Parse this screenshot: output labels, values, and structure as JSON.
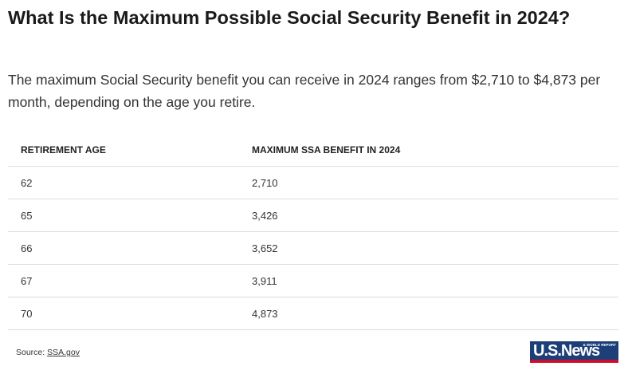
{
  "header": {
    "title": "What Is the Maximum Possible Social Security Benefit in 2024?",
    "intro": "The maximum Social Security benefit you can receive in 2024 ranges from $2,710 to $4,873 per month, depending on the age you retire."
  },
  "table": {
    "columns": [
      "RETIREMENT AGE",
      "MAXIMUM SSA BENEFIT IN 2024"
    ],
    "rows": [
      [
        "62",
        "2,710"
      ],
      [
        "65",
        "3,426"
      ],
      [
        "66",
        "3,652"
      ],
      [
        "67",
        "3,911"
      ],
      [
        "70",
        "4,873"
      ]
    ]
  },
  "footer": {
    "source_label": "Source:",
    "source_link": "SSA.gov",
    "logo": "U.S.News",
    "logo_small": "& WORLD REPORT"
  }
}
